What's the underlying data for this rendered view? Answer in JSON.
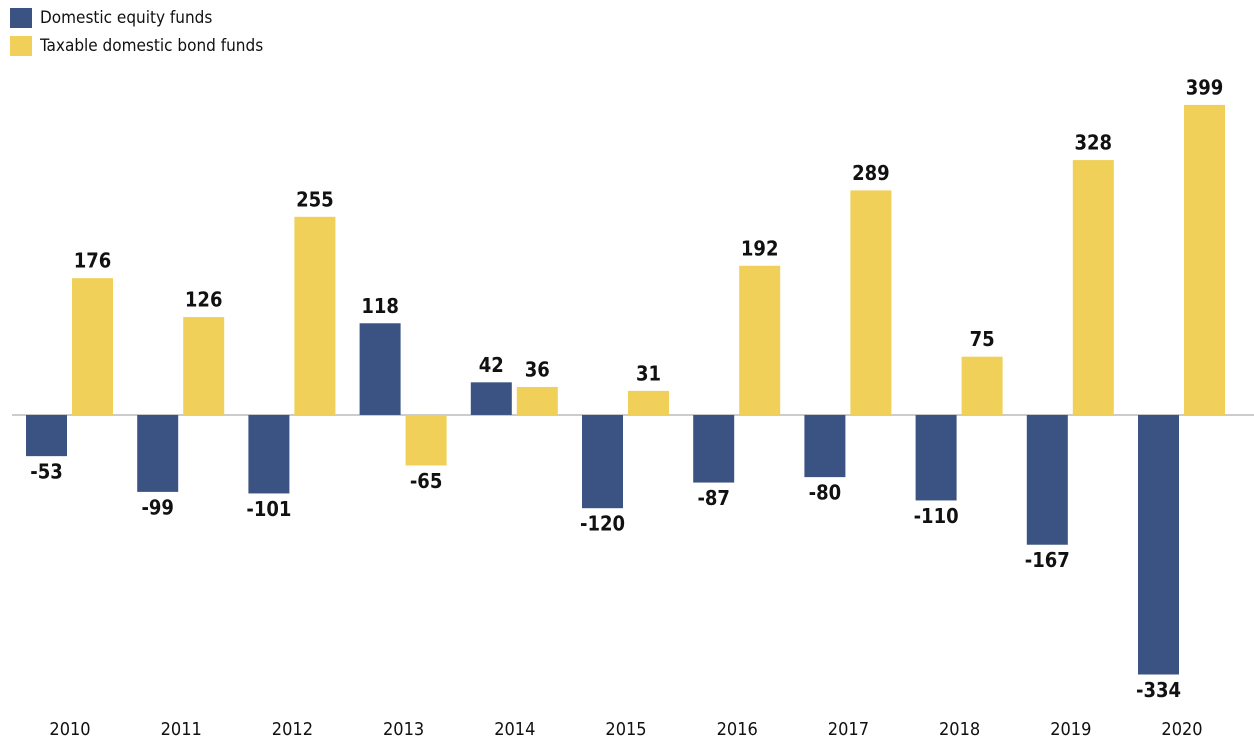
{
  "chart_data": {
    "type": "bar",
    "categories": [
      "2010",
      "2011",
      "2012",
      "2013",
      "2014",
      "2015",
      "2016",
      "2017",
      "2018",
      "2019",
      "2020"
    ],
    "series": [
      {
        "name": "Domestic equity funds",
        "color": "#3b5382",
        "values": [
          -53,
          -99,
          -101,
          118,
          42,
          -120,
          -87,
          -80,
          -110,
          -167,
          -334
        ]
      },
      {
        "name": "Taxable domestic bond funds",
        "color": "#f0d058",
        "values": [
          176,
          126,
          255,
          -65,
          36,
          31,
          192,
          289,
          75,
          328,
          399
        ]
      }
    ],
    "ylim": [
      -360,
      420
    ],
    "legend": "top-left"
  }
}
